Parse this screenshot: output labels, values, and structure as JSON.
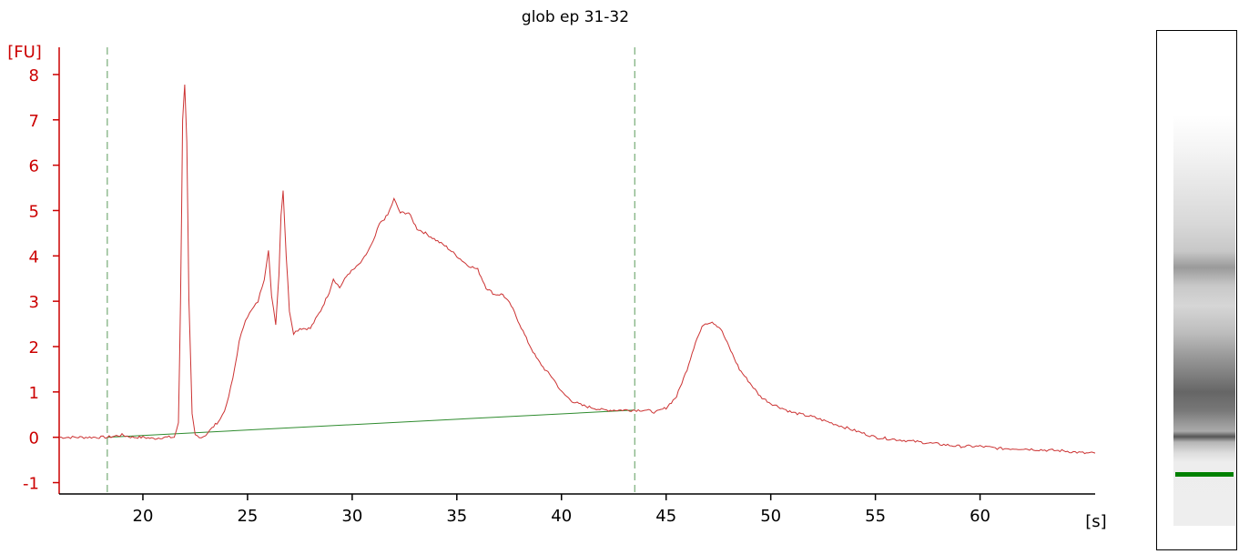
{
  "chart_data": {
    "type": "line",
    "title": "glob ep 31-32",
    "xlabel": "[s]",
    "ylabel": "[FU]",
    "xlim": [
      16.0,
      65.5
    ],
    "ylim": [
      -1.25,
      8.6
    ],
    "x_ticks": [
      20,
      25,
      30,
      35,
      40,
      45,
      50,
      55,
      60
    ],
    "y_ticks": [
      -1,
      0,
      1,
      2,
      3,
      4,
      5,
      6,
      7,
      8
    ],
    "grid": false,
    "legend": "none",
    "colors": {
      "trace": "#cc3333",
      "baseline": "#2e8b2e",
      "region": "#5b9b5b",
      "axis_y": "#cc0000",
      "axis_x": "#000000"
    },
    "series": [
      {
        "x": [
          16.0,
          17.0,
          18.0,
          18.3,
          19.0,
          19.5,
          20.0,
          20.5,
          21.0,
          21.5,
          21.7,
          21.8,
          21.9,
          22.0,
          22.1,
          22.2,
          22.35,
          22.5,
          22.8,
          23.0,
          23.3,
          23.7,
          24.0,
          24.3,
          24.6,
          24.9,
          25.2,
          25.5,
          25.8,
          26.0,
          26.15,
          26.35,
          26.5,
          26.6,
          26.7,
          26.85,
          27.0,
          27.2,
          27.5,
          28.0,
          28.5,
          28.9,
          29.1,
          29.4,
          29.8,
          30.2,
          30.5,
          31.0,
          31.3,
          31.7,
          32.0,
          32.3,
          32.7,
          33.1,
          33.5,
          34.0,
          34.5,
          35.0,
          35.5,
          36.0,
          36.4,
          36.8,
          37.2,
          37.6,
          38.0,
          38.4,
          38.8,
          39.2,
          39.6,
          40.0,
          40.5,
          41.0,
          41.5,
          42.0,
          42.5,
          43.0,
          43.5,
          44.0,
          44.5,
          45.0,
          45.5,
          46.0,
          46.4,
          46.8,
          47.2,
          47.6,
          48.0,
          48.5,
          49.0,
          49.5,
          50.0,
          51.0,
          52.0,
          53.0,
          54.0,
          55.0,
          56.0,
          57.0,
          58.0,
          59.0,
          60.0,
          61.0,
          62.0,
          63.0,
          64.0,
          65.0,
          65.5
        ],
        "y": [
          0.0,
          0.0,
          0.0,
          0.0,
          0.05,
          0.0,
          0.0,
          -0.03,
          0.0,
          0.0,
          0.3,
          3.0,
          7.0,
          7.8,
          6.5,
          3.0,
          0.5,
          0.05,
          0.0,
          0.05,
          0.2,
          0.4,
          0.7,
          1.3,
          2.1,
          2.6,
          2.8,
          3.0,
          3.5,
          4.15,
          3.1,
          2.5,
          3.6,
          4.9,
          5.45,
          4.0,
          2.8,
          2.3,
          2.4,
          2.4,
          2.8,
          3.2,
          3.5,
          3.3,
          3.6,
          3.75,
          3.9,
          4.3,
          4.7,
          4.9,
          5.25,
          4.95,
          4.95,
          4.6,
          4.5,
          4.35,
          4.2,
          4.0,
          3.8,
          3.7,
          3.3,
          3.15,
          3.15,
          2.9,
          2.5,
          2.1,
          1.75,
          1.5,
          1.3,
          1.0,
          0.8,
          0.7,
          0.65,
          0.6,
          0.6,
          0.6,
          0.6,
          0.6,
          0.55,
          0.65,
          0.9,
          1.5,
          2.1,
          2.5,
          2.55,
          2.4,
          2.0,
          1.5,
          1.2,
          0.9,
          0.75,
          0.55,
          0.45,
          0.3,
          0.15,
          0.0,
          -0.05,
          -0.1,
          -0.15,
          -0.2,
          -0.2,
          -0.25,
          -0.25,
          -0.28,
          -0.3,
          -0.35,
          -0.35
        ]
      }
    ],
    "baseline": {
      "x": [
        18.3,
        43.5
      ],
      "y": [
        0.0,
        0.6
      ]
    },
    "region_markers": [
      18.3,
      43.5
    ]
  }
}
